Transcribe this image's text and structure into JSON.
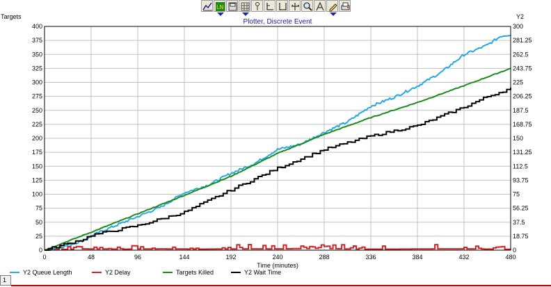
{
  "toolbar": {
    "buttons": [
      {
        "name": "line-plot-tool-icon",
        "dropdown": false
      },
      {
        "name": "line-style-icon",
        "dropdown": true
      },
      {
        "name": "save-image-icon",
        "dropdown": false
      },
      {
        "name": "grid-toggle-icon",
        "dropdown": true
      },
      {
        "name": "pin-icon",
        "dropdown": false
      },
      {
        "name": "axis-l-icon",
        "dropdown": false
      },
      {
        "name": "axis-bracket-icon",
        "dropdown": false
      },
      {
        "name": "axis-expand-icon",
        "dropdown": false
      },
      {
        "name": "zoom-icon",
        "dropdown": false
      },
      {
        "name": "scale-icon",
        "dropdown": false
      },
      {
        "name": "edit-pencil-icon",
        "dropdown": true
      },
      {
        "name": "print-icon",
        "dropdown": false
      }
    ]
  },
  "status_box": {
    "label": "1"
  },
  "colors": {
    "queue": "#28a8e0",
    "delay": "#d42020",
    "killed": "#1a8a1a",
    "wait": "#000000",
    "title": "#1a1a9a",
    "grid": "#c0c0c0",
    "bottom_line": "#b00000"
  },
  "chart_data": {
    "type": "line",
    "title": "Plotter, Discrete Event",
    "xlabel": "Time (minutes)",
    "ylabel": "Targets",
    "y2label": "Y2",
    "xlim": [
      0,
      480
    ],
    "ylim": [
      0,
      400
    ],
    "y2lim": [
      0,
      300
    ],
    "xticks": [
      "0",
      "48",
      "96",
      "144",
      "192",
      "240",
      "288",
      "336",
      "384",
      "432",
      "480"
    ],
    "yticks": [
      "0",
      "25",
      "50",
      "75",
      "100",
      "125",
      "150",
      "175",
      "200",
      "225",
      "250",
      "275",
      "300",
      "325",
      "350",
      "375",
      "400"
    ],
    "y2ticks": [
      "0",
      "18.75",
      "37.5",
      "56.25",
      "75",
      "93.75",
      "112.5",
      "131.25",
      "150",
      "168.75",
      "187.5",
      "206.25",
      "225",
      "243.75",
      "262.5",
      "281.25",
      "300"
    ],
    "grid": true,
    "legend_position": "bottom",
    "series": [
      {
        "name": "Y2 Queue Length",
        "axis": "y2",
        "style": "jagged",
        "x": [
          0,
          20,
          40,
          48,
          60,
          96,
          120,
          144,
          168,
          192,
          216,
          240,
          264,
          288,
          312,
          336,
          360,
          384,
          408,
          432,
          456,
          470,
          480
        ],
        "y": [
          0,
          5,
          13,
          19,
          26,
          45,
          58,
          77,
          87,
          103,
          116,
          135,
          142,
          158,
          172,
          193,
          205,
          220,
          238,
          262,
          275,
          287,
          289
        ]
      },
      {
        "name": "Y2 Delay",
        "axis": "y2",
        "style": "noise",
        "x": [
          0,
          40,
          80,
          120,
          160,
          200,
          240,
          280,
          320,
          360,
          400,
          440,
          480
        ],
        "y": [
          2,
          5,
          4,
          5,
          4,
          5,
          5,
          7,
          4,
          4,
          5,
          5,
          3
        ]
      },
      {
        "name": "Targets Killed",
        "axis": "y",
        "style": "smooth",
        "x": [
          0,
          48,
          96,
          144,
          192,
          240,
          288,
          336,
          384,
          432,
          480
        ],
        "y": [
          0,
          32,
          65,
          98,
          132,
          173,
          207,
          237,
          264,
          294,
          325
        ]
      },
      {
        "name": "Y2 Wait Time",
        "axis": "y2",
        "style": "step",
        "x": [
          0,
          40,
          48,
          96,
          120,
          144,
          192,
          240,
          288,
          336,
          384,
          432,
          456,
          480
        ],
        "y": [
          0,
          15,
          20,
          33,
          42,
          51,
          81,
          110,
          135,
          153,
          167,
          192,
          206,
          217
        ]
      }
    ]
  }
}
